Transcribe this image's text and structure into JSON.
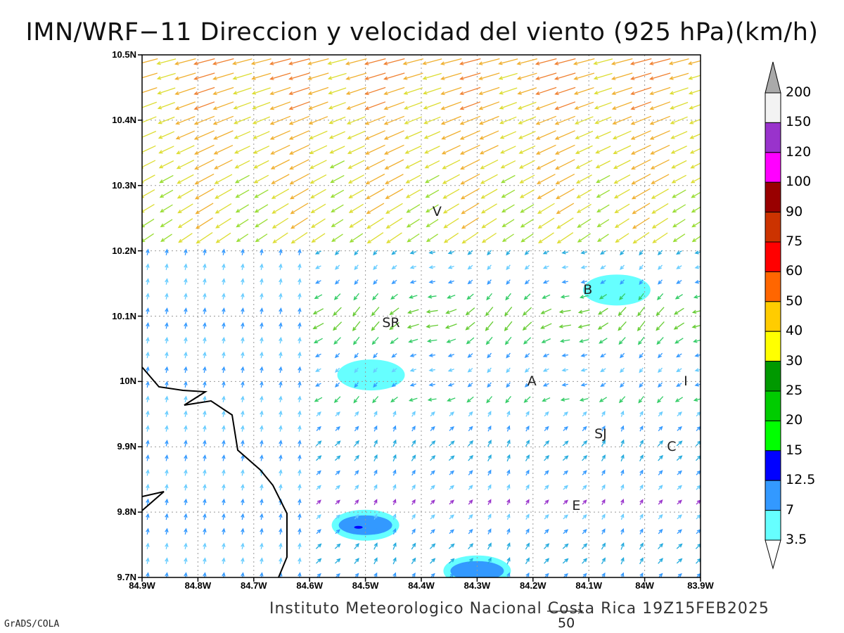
{
  "title": "IMN/WRF−11 Direccion y velocidad del viento (925 hPa)(km/h)",
  "credit": "Instituto Meteorologico Nacional Costa Rica 19Z15FEB2025",
  "software_label": "GrADS/COLA",
  "reference_vector": {
    "label": "50",
    "speed_kmh": 50
  },
  "map": {
    "lon_range": [
      -84.9,
      -83.9
    ],
    "lat_range": [
      9.7,
      10.5
    ],
    "lon_ticks": [
      "84.9W",
      "84.8W",
      "84.7W",
      "84.6W",
      "84.5W",
      "84.4W",
      "84.3W",
      "84.2W",
      "84.1W",
      "84W",
      "83.9W"
    ],
    "lat_ticks": [
      "9.7N",
      "9.8N",
      "9.9N",
      "10N",
      "10.1N",
      "10.2N",
      "10.3N",
      "10.4N",
      "10.5N"
    ],
    "grid": true,
    "cities": [
      {
        "label": "V",
        "lon": -84.37,
        "lat": 10.26
      },
      {
        "label": "SR",
        "lon": -84.46,
        "lat": 10.09
      },
      {
        "label": "B",
        "lon": -84.1,
        "lat": 10.14
      },
      {
        "label": "A",
        "lon": -84.2,
        "lat": 10.0
      },
      {
        "label": "I",
        "lon": -83.92,
        "lat": 10.0
      },
      {
        "label": "SJ",
        "lon": -84.08,
        "lat": 9.92
      },
      {
        "label": "C",
        "lon": -83.95,
        "lat": 9.9
      },
      {
        "label": "E",
        "lon": -84.12,
        "lat": 9.81
      }
    ]
  },
  "colorbar": {
    "labels": [
      "200",
      "150",
      "120",
      "100",
      "90",
      "75",
      "60",
      "50",
      "40",
      "30",
      "25",
      "20",
      "15",
      "12.5",
      "7",
      "3.5"
    ],
    "colors": [
      "#f3f3f3",
      "#9933cc",
      "#ff00ff",
      "#990000",
      "#cc3300",
      "#ff0000",
      "#ff6600",
      "#ffcc00",
      "#ffff00",
      "#009900",
      "#00cc00",
      "#00ff00",
      "#0000ff",
      "#3399ff",
      "#66ffff"
    ],
    "top_arrow_color": "#aaaaaa"
  },
  "chart_data": {
    "type": "heatmap",
    "title": "IMN/WRF−11 Direccion y velocidad del viento (925 hPa)(km/h)",
    "variable": "wind direction and speed at 925 hPa",
    "units": "km/h",
    "x_range": [
      -84.9,
      -83.9
    ],
    "y_range": [
      9.7,
      10.5
    ],
    "shaded_low_speed_areas": [
      {
        "lon": -84.5,
        "lat": 9.78,
        "max_class": "12.5"
      },
      {
        "lon": -84.49,
        "lat": 10.01,
        "max_class": "3.5"
      },
      {
        "lon": -84.3,
        "lat": 9.71,
        "max_class": "7"
      },
      {
        "lon": -84.05,
        "lat": 10.14,
        "max_class": "3.5"
      }
    ]
  }
}
